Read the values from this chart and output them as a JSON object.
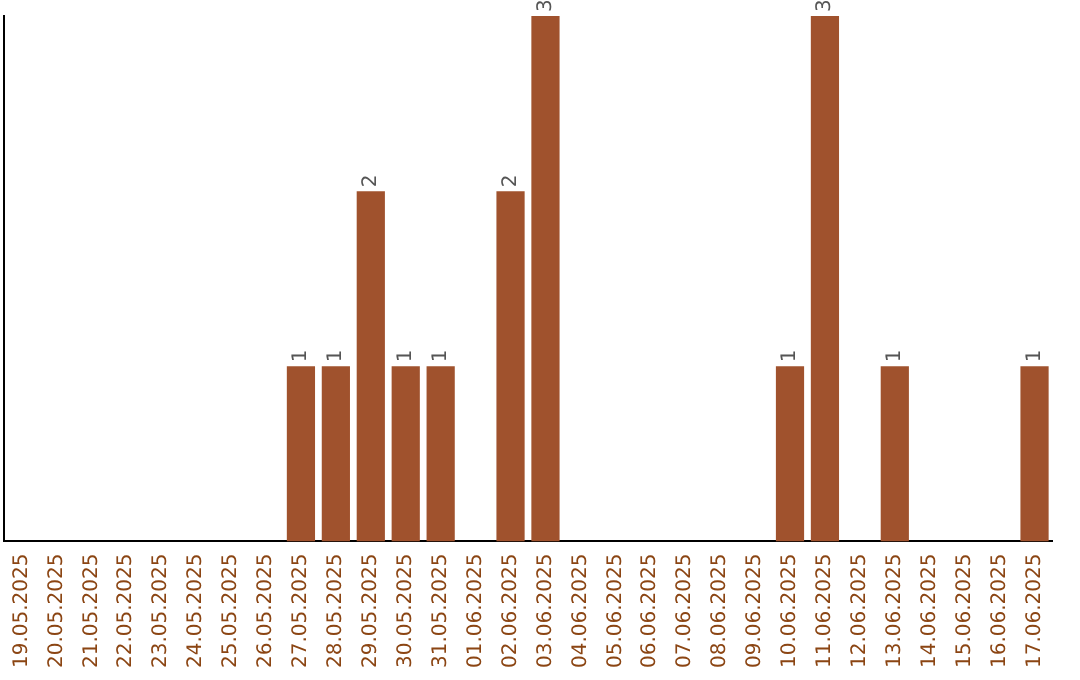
{
  "chart_data": {
    "type": "bar",
    "categories": [
      "19.05.2025",
      "20.05.2025",
      "21.05.2025",
      "22.05.2025",
      "23.05.2025",
      "24.05.2025",
      "25.05.2025",
      "26.05.2025",
      "27.05.2025",
      "28.05.2025",
      "29.05.2025",
      "30.05.2025",
      "31.05.2025",
      "01.06.2025",
      "02.06.2025",
      "03.06.2025",
      "04.06.2025",
      "05.06.2025",
      "06.06.2025",
      "07.06.2025",
      "08.06.2025",
      "09.06.2025",
      "10.06.2025",
      "11.06.2025",
      "12.06.2025",
      "13.06.2025",
      "14.06.2025",
      "15.06.2025",
      "16.06.2025",
      "17.06.2025"
    ],
    "values": [
      0,
      0,
      0,
      0,
      0,
      0,
      0,
      0,
      1,
      1,
      2,
      1,
      1,
      0,
      2,
      3,
      0,
      0,
      0,
      0,
      0,
      0,
      1,
      3,
      0,
      1,
      0,
      0,
      0,
      1
    ],
    "value_labels": [
      null,
      null,
      null,
      null,
      null,
      null,
      null,
      null,
      "1",
      "1",
      "2",
      "1",
      "1",
      null,
      "2",
      "3",
      null,
      null,
      null,
      null,
      null,
      null,
      "1",
      "3",
      null,
      "1",
      null,
      null,
      null,
      "1"
    ],
    "color": "#a0522d",
    "grid": false,
    "legend": false,
    "tick_labels": "x"
  }
}
